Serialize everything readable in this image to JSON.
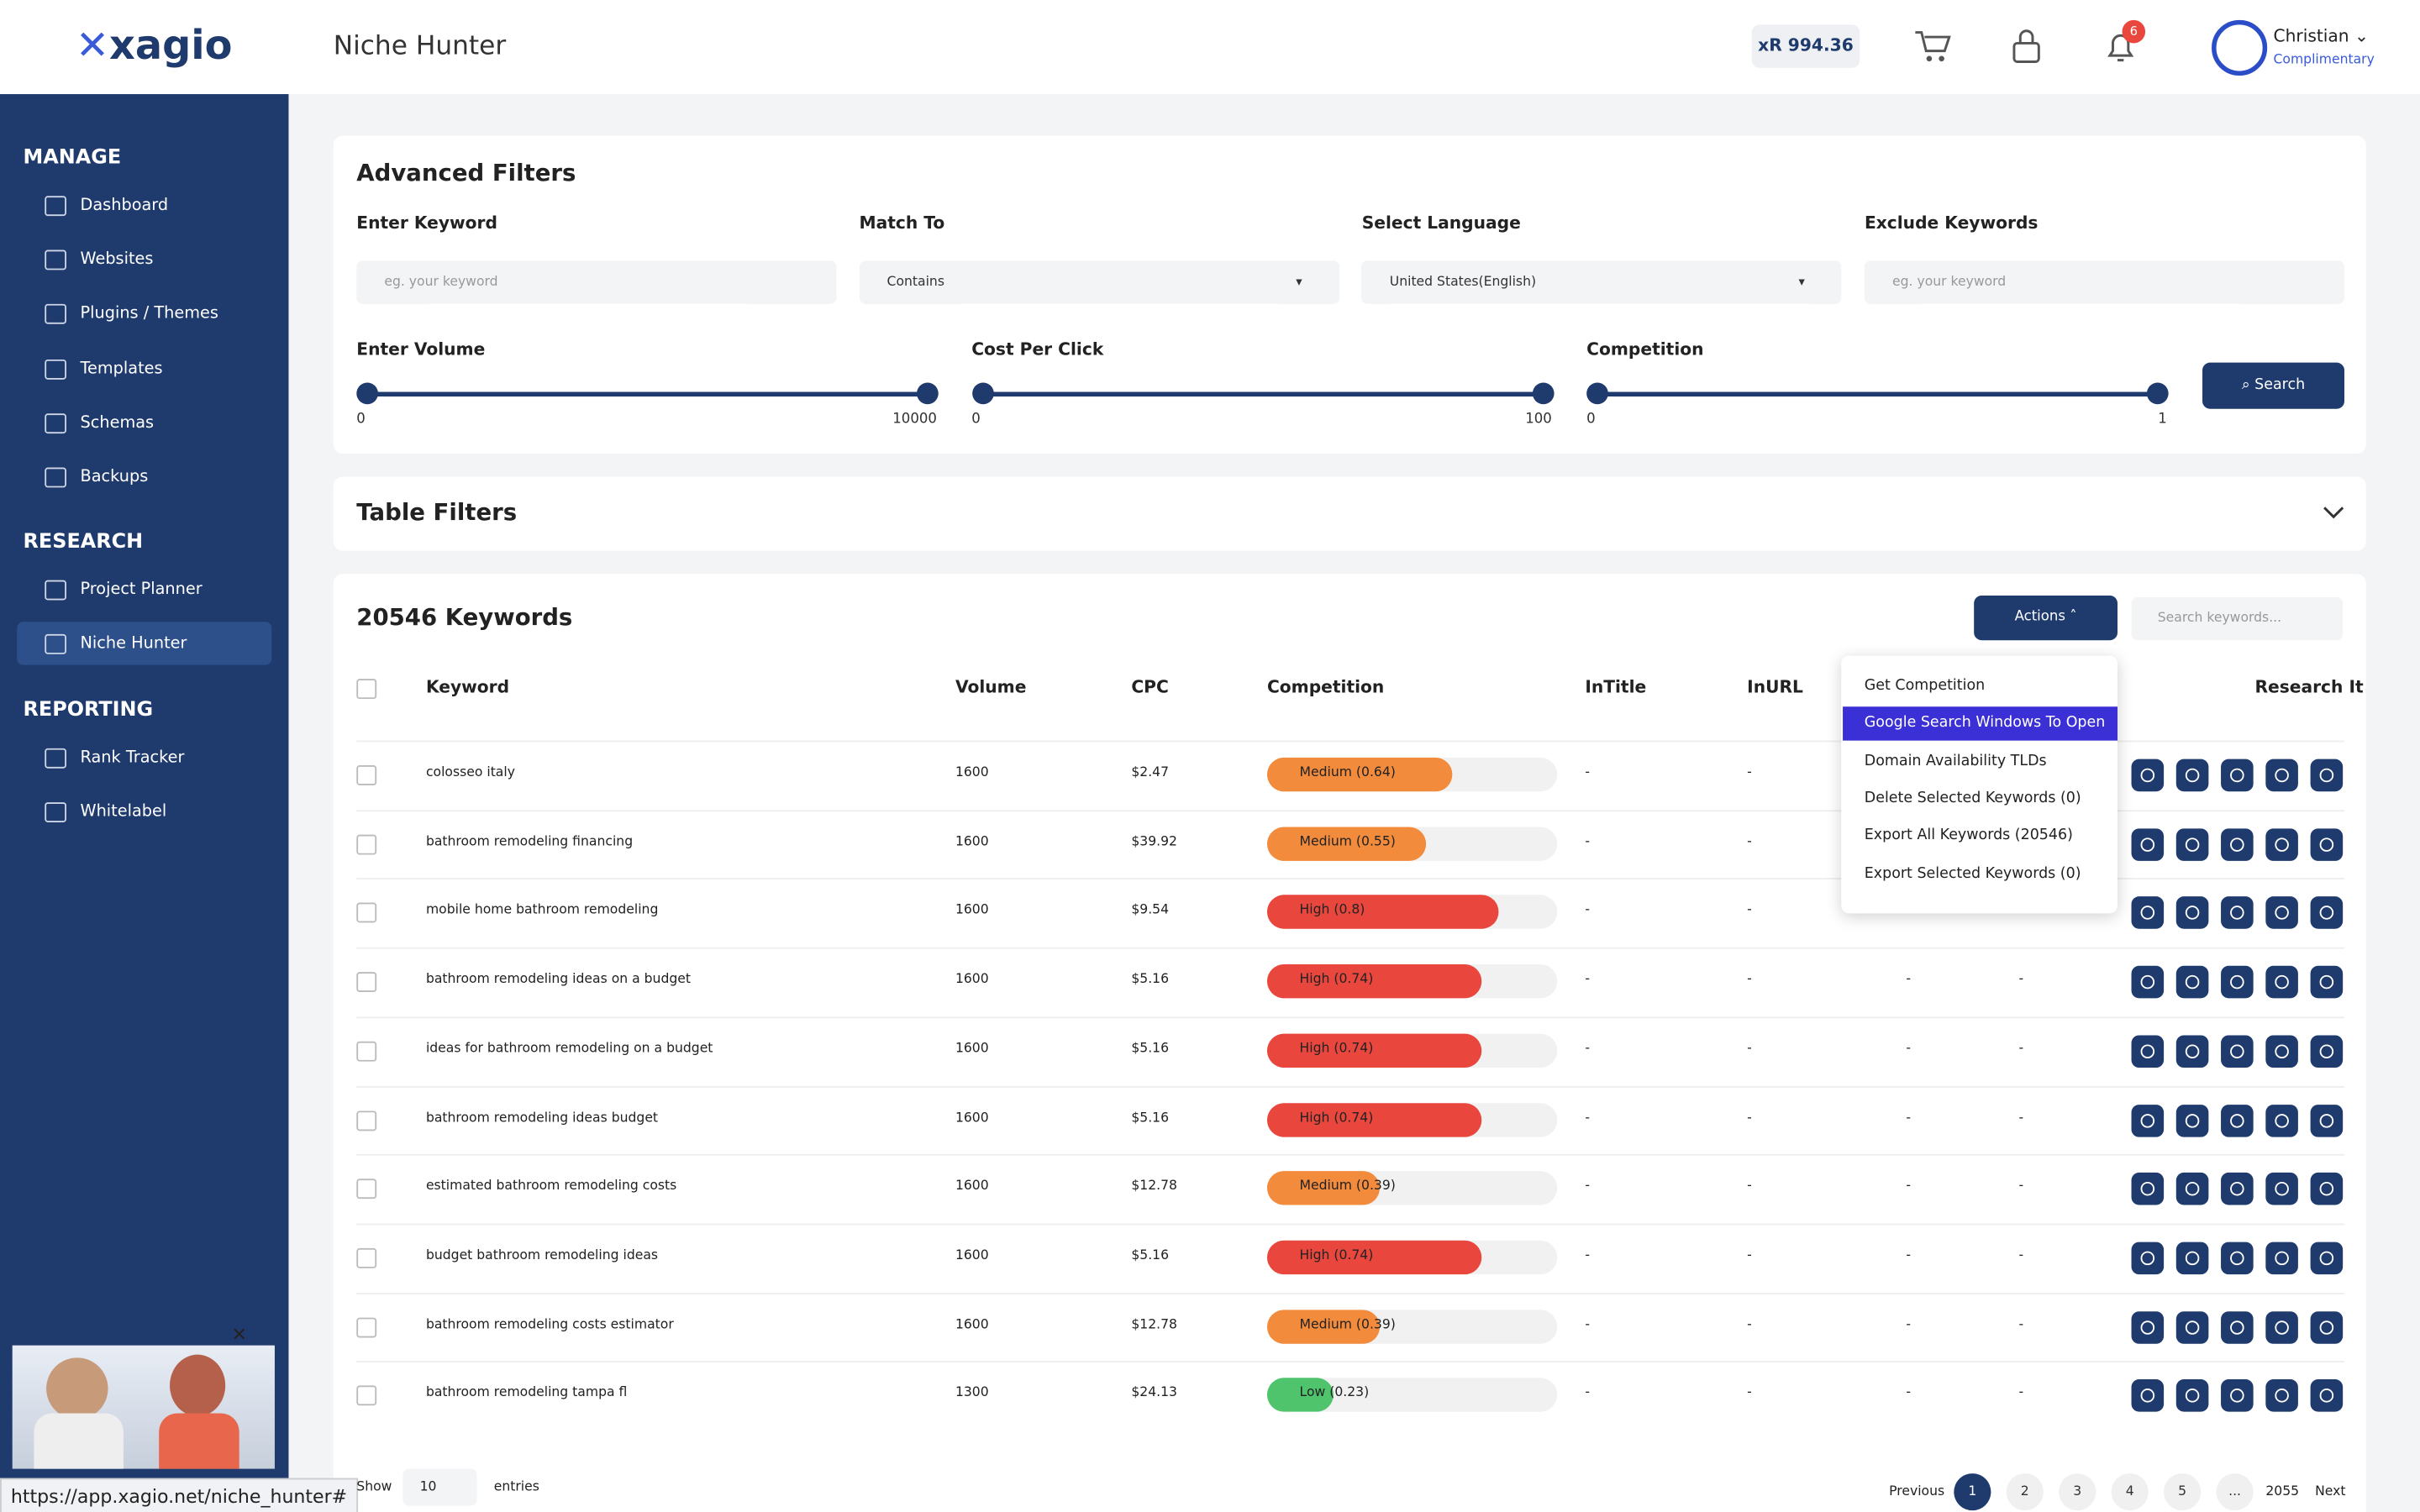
{
  "header": {
    "logo": "xagio",
    "title": "Niche Hunter",
    "balance": "xR 994.36",
    "notifications": "6",
    "user": "Christian",
    "plan": "Complimentary"
  },
  "sidebar": {
    "sections": [
      {
        "title": "MANAGE",
        "items": [
          "Dashboard",
          "Websites",
          "Plugins / Themes",
          "Templates",
          "Schemas",
          "Backups"
        ]
      },
      {
        "title": "RESEARCH",
        "items": [
          "Project Planner",
          "Niche Hunter"
        ]
      },
      {
        "title": "REPORTING",
        "items": [
          "Rank Tracker",
          "Whitelabel"
        ]
      }
    ],
    "active": "Niche Hunter"
  },
  "filters": {
    "title": "Advanced Filters",
    "fields": [
      {
        "label": "Enter Keyword",
        "placeholder": "eg. your keyword"
      },
      {
        "label": "Match To",
        "value": "Contains"
      },
      {
        "label": "Select Language",
        "value": "United States(English)"
      },
      {
        "label": "Exclude Keywords",
        "placeholder": "eg. your keyword"
      }
    ],
    "sliders": [
      {
        "label": "Enter Volume",
        "min": "0",
        "max": "10000"
      },
      {
        "label": "Cost Per Click",
        "min": "0",
        "max": "100"
      },
      {
        "label": "Competition",
        "min": "0",
        "max": "1"
      }
    ],
    "search": "Search"
  },
  "table_filters": {
    "title": "Table Filters"
  },
  "table": {
    "title": "20546 Keywords",
    "actions": "Actions",
    "search_placeholder": "Search keywords...",
    "columns": [
      "Keyword",
      "Volume",
      "CPC",
      "Competition",
      "InTitle",
      "InURL",
      "Research It"
    ],
    "rows": [
      {
        "keyword": "colosseo italy",
        "volume": "1600",
        "cpc": "$2.47",
        "competition": 0.64,
        "competition_label": "Medium (0.64)",
        "color": "#f28b3b",
        "intitle": "-",
        "inurl": "-"
      },
      {
        "keyword": "bathroom remodeling financing",
        "volume": "1600",
        "cpc": "$39.92",
        "competition": 0.55,
        "competition_label": "Medium (0.55)",
        "color": "#f28b3b",
        "intitle": "-",
        "inurl": "-"
      },
      {
        "keyword": "mobile home bathroom remodeling",
        "volume": "1600",
        "cpc": "$9.54",
        "competition": 0.8,
        "competition_label": "High (0.8)",
        "color": "#e9473d",
        "intitle": "-",
        "inurl": "-",
        "c3": "-"
      },
      {
        "keyword": "bathroom remodeling ideas on a budget",
        "volume": "1600",
        "cpc": "$5.16",
        "competition": 0.74,
        "competition_label": "High (0.74)",
        "color": "#e9473d",
        "intitle": "-",
        "inurl": "-",
        "c3": "-",
        "c4": "-"
      },
      {
        "keyword": "ideas for bathroom remodeling on a budget",
        "volume": "1600",
        "cpc": "$5.16",
        "competition": 0.74,
        "competition_label": "High (0.74)",
        "color": "#e9473d",
        "intitle": "-",
        "inurl": "-",
        "c3": "-",
        "c4": "-"
      },
      {
        "keyword": "bathroom remodeling ideas budget",
        "volume": "1600",
        "cpc": "$5.16",
        "competition": 0.74,
        "competition_label": "High (0.74)",
        "color": "#e9473d",
        "intitle": "-",
        "inurl": "-",
        "c3": "-",
        "c4": "-"
      },
      {
        "keyword": "estimated bathroom remodeling costs",
        "volume": "1600",
        "cpc": "$12.78",
        "competition": 0.39,
        "competition_label": "Medium (0.39)",
        "color": "#f28b3b",
        "intitle": "-",
        "inurl": "-",
        "c3": "-",
        "c4": "-"
      },
      {
        "keyword": "budget bathroom remodeling ideas",
        "volume": "1600",
        "cpc": "$5.16",
        "competition": 0.74,
        "competition_label": "High (0.74)",
        "color": "#e9473d",
        "intitle": "-",
        "inurl": "-",
        "c3": "-",
        "c4": "-"
      },
      {
        "keyword": "bathroom remodeling costs estimator",
        "volume": "1600",
        "cpc": "$12.78",
        "competition": 0.39,
        "competition_label": "Medium (0.39)",
        "color": "#f28b3b",
        "intitle": "-",
        "inurl": "-",
        "c3": "-",
        "c4": "-"
      },
      {
        "keyword": "bathroom remodeling tampa fl",
        "volume": "1300",
        "cpc": "$24.13",
        "competition": 0.23,
        "competition_label": "Low (0.23)",
        "color": "#4fc46c",
        "intitle": "-",
        "inurl": "-",
        "c3": "-",
        "c4": "-"
      }
    ]
  },
  "actions_menu": [
    "Get Competition",
    "Google Search Windows To Open",
    "Domain Availability TLDs",
    "Delete Selected Keywords (0)",
    "Export All Keywords (20546)",
    "Export Selected Keywords (0)"
  ],
  "actions_highlight": "Google Search Windows To Open",
  "footer": {
    "show": "Show",
    "entries_value": "10",
    "entries": "entries",
    "pages": [
      "Previous",
      "1",
      "2",
      "3",
      "4",
      "5",
      "...",
      "2055",
      "Next"
    ],
    "current": "1"
  },
  "status_url": "https://app.xagio.net/niche_hunter#"
}
